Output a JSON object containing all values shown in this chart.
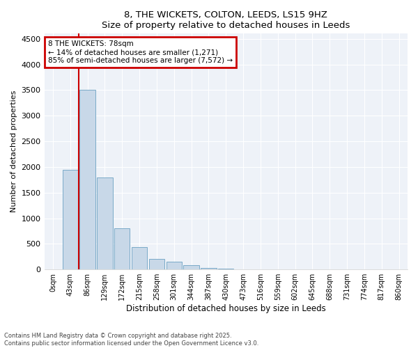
{
  "title1": "8, THE WICKETS, COLTON, LEEDS, LS15 9HZ",
  "title2": "Size of property relative to detached houses in Leeds",
  "xlabel": "Distribution of detached houses by size in Leeds",
  "ylabel": "Number of detached properties",
  "bar_labels": [
    "0sqm",
    "43sqm",
    "86sqm",
    "129sqm",
    "172sqm",
    "215sqm",
    "258sqm",
    "301sqm",
    "344sqm",
    "387sqm",
    "430sqm",
    "473sqm",
    "516sqm",
    "559sqm",
    "602sqm",
    "645sqm",
    "688sqm",
    "731sqm",
    "774sqm",
    "817sqm",
    "860sqm"
  ],
  "bar_values": [
    5,
    1950,
    3500,
    1800,
    800,
    440,
    200,
    150,
    80,
    30,
    10,
    5,
    2,
    1,
    1,
    0,
    0,
    0,
    0,
    0,
    0
  ],
  "bar_color": "#c8d8e8",
  "bar_edge_color": "#7aaac8",
  "vline_color": "#cc0000",
  "annotation_text": "8 THE WICKETS: 78sqm\n← 14% of detached houses are smaller (1,271)\n85% of semi-detached houses are larger (7,572) →",
  "annotation_box_color": "#cc0000",
  "ylim": [
    0,
    4600
  ],
  "yticks": [
    0,
    500,
    1000,
    1500,
    2000,
    2500,
    3000,
    3500,
    4000,
    4500
  ],
  "bg_color": "#eef2f8",
  "footer1": "Contains HM Land Registry data © Crown copyright and database right 2025.",
  "footer2": "Contains public sector information licensed under the Open Government Licence v3.0."
}
